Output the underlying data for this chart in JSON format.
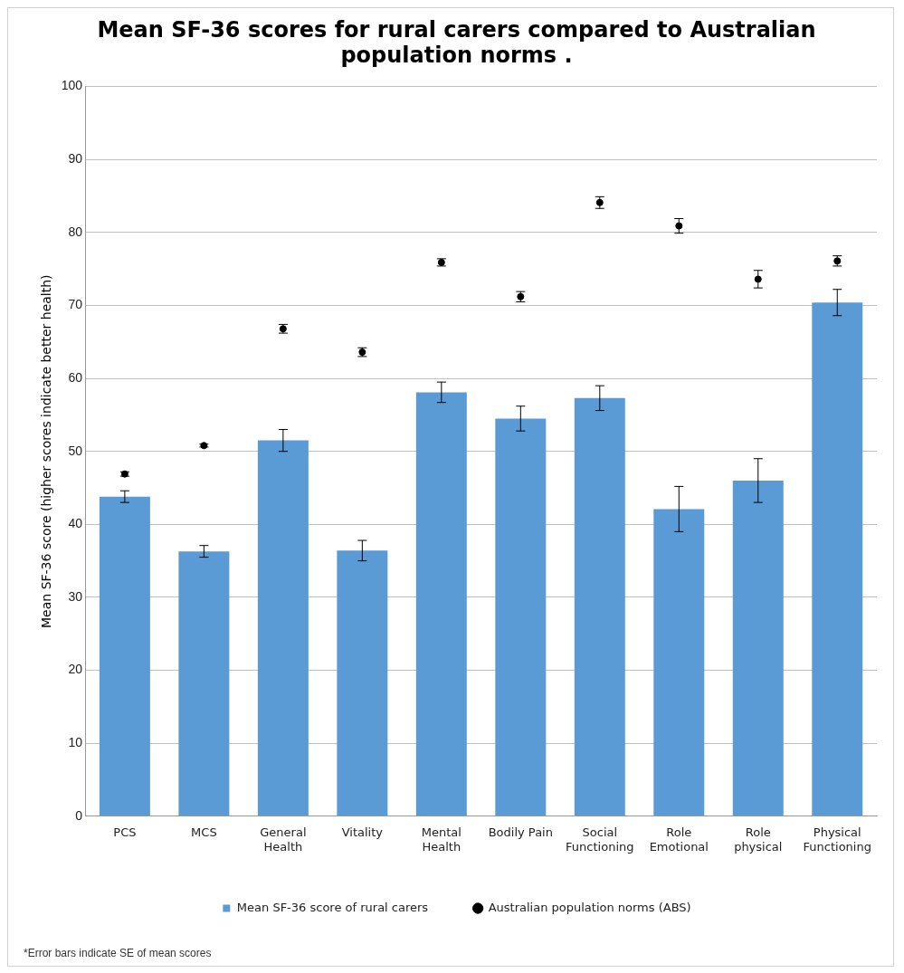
{
  "chart_data": {
    "type": "bar",
    "title": "Mean SF-36 scores for rural carers compared to Australian population norms .",
    "ylabel": "Mean SF-36 score (higher scores indicate better health)",
    "categories": [
      "PCS",
      "MCS",
      "General Health",
      "Vitality",
      "Mental Health",
      "Bodily Pain",
      "Social Functioning",
      "Role Emotional",
      "Role physical",
      "Physical Functioning"
    ],
    "series": [
      {
        "name": "Mean SF-36 score of rural carers",
        "color": "#5b9bd5",
        "values": [
          43.8,
          36.3,
          51.5,
          36.4,
          58.1,
          54.5,
          57.3,
          42.1,
          46.0,
          70.4
        ],
        "errors": [
          0.8,
          0.8,
          1.5,
          1.4,
          1.4,
          1.7,
          1.7,
          3.1,
          3.0,
          1.8
        ]
      },
      {
        "name": "Australian population norms (ABS)",
        "type": "scatter",
        "color": "#000000",
        "marker": "circle",
        "x": [
          "PCS",
          "MCS",
          "General Health",
          "Vitality",
          "Mental Health",
          "Bodily Pain",
          "Social Functioning",
          "Role Emotional",
          "Role physical",
          "Physical Functioning"
        ],
        "values": [
          46.9,
          50.8,
          66.8,
          63.6,
          75.9,
          71.2,
          84.1,
          80.9,
          73.6,
          76.1
        ],
        "errors": [
          0.3,
          0.2,
          0.6,
          0.6,
          0.5,
          0.7,
          0.8,
          1.0,
          1.2,
          0.7
        ]
      }
    ],
    "ylim": [
      0,
      100
    ],
    "yticks": [
      0,
      10,
      20,
      30,
      40,
      50,
      60,
      70,
      80,
      90,
      100
    ],
    "grid": "y",
    "legend": "bottom",
    "annotations": [
      "*Error bars indicate SE of mean scores"
    ]
  }
}
